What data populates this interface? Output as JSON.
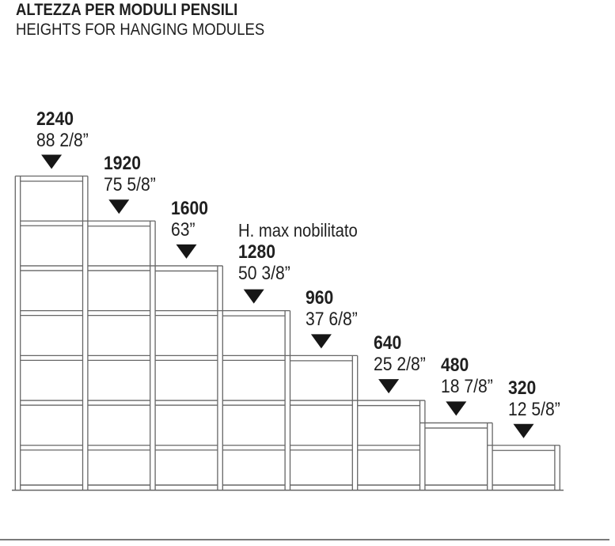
{
  "page": {
    "title": "ALTEZZA PER MODULI PENSILI",
    "subtitle": "HEIGHTS FOR HANGING MODULES"
  },
  "diagram": {
    "type": "dimension-drawing",
    "description_of_marks": "filled triangle pointers above each module top",
    "grid_step_mm": 320,
    "modules": [
      {
        "mm": 2240,
        "mm_label": "2240",
        "inches": "88 2/8”"
      },
      {
        "mm": 1920,
        "mm_label": "1920",
        "inches": "75 5/8”"
      },
      {
        "mm": 1600,
        "mm_label": "1600",
        "inches": "63”"
      },
      {
        "mm": 1280,
        "mm_label": "1280",
        "inches": "50 3/8”",
        "note": "H. max nobilitato"
      },
      {
        "mm": 960,
        "mm_label": "960",
        "inches": "37 6/8”"
      },
      {
        "mm": 640,
        "mm_label": "640",
        "inches": "25 2/8”"
      },
      {
        "mm": 480,
        "mm_label": "480",
        "inches": "18 7/8”"
      },
      {
        "mm": 320,
        "mm_label": "320",
        "inches": "12 5/8”"
      }
    ],
    "colors": {
      "line": "#666666",
      "text": "#1f1f1f",
      "marker": "#161616",
      "footer_rule": "#7a7a7a"
    }
  }
}
